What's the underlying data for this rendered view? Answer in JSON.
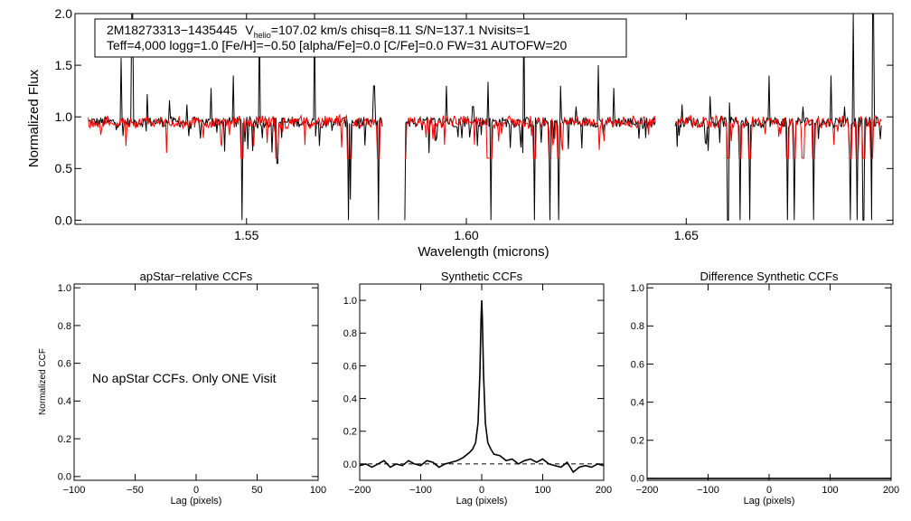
{
  "chart_data": [
    {
      "type": "line",
      "info": {
        "star": "2M18273313−1435445",
        "vhelio_pre": "V",
        "vhelio_sub": "helio",
        "vhelio_post": "=107.02 km/s  chisq=8.11  S/N=137.1  Nvisits=1",
        "line2": "Teff=4,000 logg=1.0 [Fe/H]=−0.50 [alpha/Fe]=0.0 [C/Fe]=0.0 FW=31 AUTOFW=20"
      },
      "xlabel": "Wavelength (microns)",
      "ylabel": "Normalized Flux",
      "xlim": [
        1.511,
        1.697
      ],
      "ylim": [
        -0.04,
        2.0
      ],
      "xticks": [
        "1.55",
        "1.60",
        "1.65"
      ],
      "xtick_values": [
        1.55,
        1.6,
        1.65
      ],
      "yticks": [
        "0.0",
        "0.5",
        "1.0",
        "1.5",
        "2.0"
      ],
      "ytick_values": [
        0.0,
        0.5,
        1.0,
        1.5,
        2.0
      ],
      "segments": [
        [
          1.514,
          1.581
        ],
        [
          1.586,
          1.643
        ],
        [
          1.6475,
          1.6945
        ]
      ],
      "continuum": 0.95,
      "series": [
        {
          "color": "#000000"
        },
        {
          "color": "#ff0000"
        }
      ],
      "absorption_lines": [
        {
          "x": 1.549,
          "depth": 0.0
        },
        {
          "x": 1.557,
          "depth": 0.55
        },
        {
          "x": 1.5732,
          "depth": 0.0
        },
        {
          "x": 1.5737,
          "depth": 0.2
        },
        {
          "x": 1.58,
          "depth": 0.0
        },
        {
          "x": 1.586,
          "depth": 0.0
        },
        {
          "x": 1.605,
          "depth": 0.0
        },
        {
          "x": 1.6056,
          "depth": 0.0
        },
        {
          "x": 1.6154,
          "depth": 0.0
        },
        {
          "x": 1.619,
          "depth": 0.0
        },
        {
          "x": 1.621,
          "depth": 0.0
        },
        {
          "x": 1.6595,
          "depth": 0.0
        },
        {
          "x": 1.6622,
          "depth": 0.0
        },
        {
          "x": 1.6645,
          "depth": 0.0
        },
        {
          "x": 1.673,
          "depth": 0.0
        },
        {
          "x": 1.6745,
          "depth": 0.0
        },
        {
          "x": 1.6765,
          "depth": 0.0
        },
        {
          "x": 1.679,
          "depth": 0.0
        },
        {
          "x": 1.6873,
          "depth": 0.0
        },
        {
          "x": 1.6888,
          "depth": 0.0
        },
        {
          "x": 1.6903,
          "depth": 0.0
        },
        {
          "x": 1.6922,
          "depth": 0.0
        }
      ],
      "emission_spikes": [
        {
          "x": 1.5215,
          "height": 1.57
        },
        {
          "x": 1.524,
          "height": 2.0
        },
        {
          "x": 1.5275,
          "height": 1.22
        },
        {
          "x": 1.5325,
          "height": 1.16
        },
        {
          "x": 1.5365,
          "height": 1.12
        },
        {
          "x": 1.542,
          "height": 1.28
        },
        {
          "x": 1.547,
          "height": 1.4
        },
        {
          "x": 1.553,
          "height": 1.95
        },
        {
          "x": 1.5655,
          "height": 2.0
        },
        {
          "x": 1.579,
          "height": 1.3
        },
        {
          "x": 1.5955,
          "height": 1.3
        },
        {
          "x": 1.6015,
          "height": 1.1
        },
        {
          "x": 1.605,
          "height": 1.34
        },
        {
          "x": 1.613,
          "height": 2.0
        },
        {
          "x": 1.6215,
          "height": 1.3
        },
        {
          "x": 1.625,
          "height": 1.1
        },
        {
          "x": 1.63,
          "height": 1.5
        },
        {
          "x": 1.6335,
          "height": 1.28
        },
        {
          "x": 1.649,
          "height": 1.12
        },
        {
          "x": 1.6555,
          "height": 1.2
        },
        {
          "x": 1.6598,
          "height": 1.14
        },
        {
          "x": 1.6688,
          "height": 1.4
        },
        {
          "x": 1.6765,
          "height": 1.1
        },
        {
          "x": 1.683,
          "height": 1.4
        },
        {
          "x": 1.686,
          "height": 1.1
        },
        {
          "x": 1.688,
          "height": 2.0
        },
        {
          "x": 1.6925,
          "height": 2.0
        }
      ]
    },
    {
      "type": "line",
      "title": "apStar−relative CCFs",
      "xlabel": "Lag (pixels)",
      "ylabel": "Normalized CCF",
      "xlim": [
        -100,
        100
      ],
      "ylim": [
        -0.02,
        1.02
      ],
      "xticks": [
        "−100",
        "−50",
        "0",
        "50",
        "100"
      ],
      "xtick_values": [
        -100,
        -50,
        0,
        50,
        100
      ],
      "yticks": [
        "0.0",
        "0.2",
        "0.4",
        "0.6",
        "0.8",
        "1.0"
      ],
      "ytick_values": [
        0.0,
        0.2,
        0.4,
        0.6,
        0.8,
        1.0
      ],
      "annotation": "No apStar CCFs.  Only ONE Visit",
      "series": []
    },
    {
      "type": "line",
      "title": "Synthetic CCFs",
      "xlabel": "Lag (pixels)",
      "xlim": [
        -200,
        200
      ],
      "ylim": [
        -0.1,
        1.1
      ],
      "xticks": [
        "−200",
        "−100",
        "0",
        "100",
        "200"
      ],
      "xtick_values": [
        -200,
        -100,
        0,
        100,
        200
      ],
      "yticks": [
        "0.0",
        "0.2",
        "0.4",
        "0.6",
        "0.8",
        "1.0"
      ],
      "ytick_values": [
        0.0,
        0.2,
        0.4,
        0.6,
        0.8,
        1.0
      ],
      "baseline": 0.0,
      "series": [
        {
          "color": "#000000",
          "x": [
            -200,
            -190,
            -180,
            -170,
            -160,
            -150,
            -140,
            -130,
            -120,
            -110,
            -100,
            -90,
            -80,
            -70,
            -60,
            -50,
            -40,
            -30,
            -20,
            -15,
            -10,
            -6,
            -3,
            -1,
            0,
            1,
            3,
            6,
            10,
            15,
            20,
            30,
            40,
            50,
            60,
            70,
            80,
            90,
            100,
            110,
            120,
            130,
            140,
            150,
            160,
            170,
            180,
            190,
            200
          ],
          "y": [
            -0.01,
            0.0,
            -0.02,
            0.0,
            0.02,
            -0.02,
            0.0,
            -0.01,
            0.02,
            0.0,
            -0.01,
            0.02,
            0.01,
            -0.02,
            0.0,
            0.01,
            0.02,
            0.04,
            0.07,
            0.09,
            0.13,
            0.25,
            0.55,
            0.9,
            1.0,
            0.9,
            0.55,
            0.25,
            0.13,
            0.09,
            0.06,
            0.05,
            0.02,
            0.03,
            0.0,
            0.02,
            0.03,
            0.01,
            0.03,
            0.0,
            -0.01,
            -0.02,
            0.01,
            -0.05,
            -0.02,
            -0.01,
            -0.02,
            0.0,
            -0.01
          ]
        }
      ]
    },
    {
      "type": "line",
      "title": "Difference Synthetic CCFs",
      "xlabel": "Lag (pixels)",
      "xlim": [
        -200,
        200
      ],
      "ylim": [
        -0.01,
        1.02
      ],
      "xticks": [
        "−200",
        "−100",
        "0",
        "100",
        "200"
      ],
      "xtick_values": [
        -200,
        -100,
        0,
        100,
        200
      ],
      "yticks": [
        "0.0",
        "0.2",
        "0.4",
        "0.6",
        "0.8",
        "1.0"
      ],
      "ytick_values": [
        0.0,
        0.2,
        0.4,
        0.6,
        0.8,
        1.0
      ],
      "series": [
        {
          "color": "#000000",
          "x": [
            -200,
            200
          ],
          "y": [
            0.0,
            0.0
          ]
        }
      ]
    }
  ]
}
